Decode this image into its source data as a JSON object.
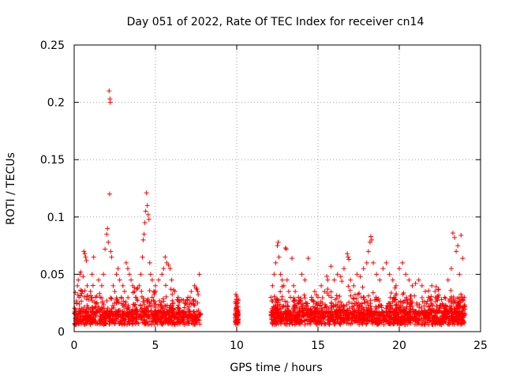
{
  "chart_data": {
    "type": "scatter",
    "title": "Day 051 of 2022, Rate Of TEC Index for receiver cn14",
    "xlabel": "GPS time / hours",
    "ylabel": "ROTI / TECUs",
    "xlim": [
      0,
      25
    ],
    "ylim": [
      0,
      0.25
    ],
    "xticks": [
      0,
      5,
      10,
      15,
      20,
      25
    ],
    "xtick_labels": [
      "0",
      "5",
      "10",
      "15",
      "20",
      "25"
    ],
    "yticks": [
      0,
      0.05,
      0.1,
      0.15,
      0.2,
      0.25
    ],
    "ytick_labels": [
      "0",
      "0.05",
      "0.1",
      "0.15",
      "0.2",
      "0.25"
    ],
    "grid": true,
    "marker": "+",
    "color": "#ff0000",
    "series": [
      {
        "name": "ROTI",
        "points": [
          [
            0.1,
            0.012
          ],
          [
            0.15,
            0.025
          ],
          [
            0.2,
            0.04
          ],
          [
            0.25,
            0.045
          ],
          [
            0.3,
            0.03
          ],
          [
            0.35,
            0.05
          ],
          [
            0.4,
            0.052
          ],
          [
            0.45,
            0.02
          ],
          [
            0.5,
            0.035
          ],
          [
            0.55,
            0.048
          ],
          [
            0.6,
            0.07
          ],
          [
            0.65,
            0.068
          ],
          [
            0.7,
            0.065
          ],
          [
            0.75,
            0.062
          ],
          [
            0.8,
            0.04
          ],
          [
            0.9,
            0.028
          ],
          [
            1.0,
            0.035
          ],
          [
            1.1,
            0.05
          ],
          [
            1.2,
            0.065
          ],
          [
            1.3,
            0.03
          ],
          [
            1.4,
            0.025
          ],
          [
            1.5,
            0.045
          ],
          [
            1.6,
            0.03
          ],
          [
            1.7,
            0.04
          ],
          [
            1.8,
            0.05
          ],
          [
            1.9,
            0.072
          ],
          [
            2.0,
            0.085
          ],
          [
            2.05,
            0.09
          ],
          [
            2.1,
            0.078
          ],
          [
            2.15,
            0.21
          ],
          [
            2.2,
            0.203
          ],
          [
            2.22,
            0.2
          ],
          [
            2.18,
            0.12
          ],
          [
            2.25,
            0.07
          ],
          [
            2.3,
            0.065
          ],
          [
            2.4,
            0.04
          ],
          [
            2.5,
            0.035
          ],
          [
            2.6,
            0.05
          ],
          [
            2.7,
            0.055
          ],
          [
            2.8,
            0.045
          ],
          [
            2.9,
            0.03
          ],
          [
            3.0,
            0.04
          ],
          [
            3.1,
            0.035
          ],
          [
            3.2,
            0.06
          ],
          [
            3.3,
            0.055
          ],
          [
            3.4,
            0.05
          ],
          [
            3.5,
            0.045
          ],
          [
            3.6,
            0.04
          ],
          [
            3.7,
            0.035
          ],
          [
            3.8,
            0.03
          ],
          [
            3.9,
            0.038
          ],
          [
            4.0,
            0.04
          ],
          [
            4.1,
            0.05
          ],
          [
            4.2,
            0.065
          ],
          [
            4.25,
            0.08
          ],
          [
            4.3,
            0.085
          ],
          [
            4.35,
            0.095
          ],
          [
            4.4,
            0.105
          ],
          [
            4.45,
            0.121
          ],
          [
            4.5,
            0.11
          ],
          [
            4.55,
            0.102
          ],
          [
            4.6,
            0.098
          ],
          [
            4.65,
            0.06
          ],
          [
            4.7,
            0.05
          ],
          [
            4.8,
            0.045
          ],
          [
            4.9,
            0.035
          ],
          [
            5.0,
            0.04
          ],
          [
            5.2,
            0.045
          ],
          [
            5.4,
            0.05
          ],
          [
            5.5,
            0.055
          ],
          [
            5.6,
            0.065
          ],
          [
            5.7,
            0.06
          ],
          [
            5.8,
            0.058
          ],
          [
            5.9,
            0.055
          ],
          [
            6.0,
            0.045
          ],
          [
            6.2,
            0.035
          ],
          [
            6.4,
            0.03
          ],
          [
            6.6,
            0.028
          ],
          [
            6.8,
            0.025
          ],
          [
            7.0,
            0.03
          ],
          [
            7.2,
            0.035
          ],
          [
            7.4,
            0.04
          ],
          [
            7.5,
            0.038
          ],
          [
            7.6,
            0.035
          ],
          [
            7.7,
            0.05
          ],
          [
            7.75,
            0.015
          ],
          [
            9.9,
            0.026
          ],
          [
            9.95,
            0.02
          ],
          [
            10.0,
            0.018
          ],
          [
            10.05,
            0.025
          ],
          [
            10.1,
            0.015
          ],
          [
            12.1,
            0.03
          ],
          [
            12.2,
            0.04
          ],
          [
            12.3,
            0.05
          ],
          [
            12.4,
            0.06
          ],
          [
            12.5,
            0.075
          ],
          [
            12.55,
            0.078
          ],
          [
            12.6,
            0.065
          ],
          [
            12.7,
            0.05
          ],
          [
            12.8,
            0.045
          ],
          [
            12.9,
            0.04
          ],
          [
            13.0,
            0.073
          ],
          [
            13.05,
            0.072
          ],
          [
            13.1,
            0.045
          ],
          [
            13.2,
            0.035
          ],
          [
            13.3,
            0.03
          ],
          [
            13.4,
            0.064
          ],
          [
            13.5,
            0.04
          ],
          [
            13.6,
            0.035
          ],
          [
            13.8,
            0.03
          ],
          [
            14.0,
            0.05
          ],
          [
            14.2,
            0.045
          ],
          [
            14.4,
            0.064
          ],
          [
            14.6,
            0.03
          ],
          [
            14.8,
            0.035
          ],
          [
            15.0,
            0.03
          ],
          [
            15.2,
            0.04
          ],
          [
            15.4,
            0.035
          ],
          [
            15.6,
            0.045
          ],
          [
            15.8,
            0.057
          ],
          [
            16.0,
            0.045
          ],
          [
            16.2,
            0.05
          ],
          [
            16.4,
            0.048
          ],
          [
            16.6,
            0.055
          ],
          [
            16.8,
            0.068
          ],
          [
            16.85,
            0.065
          ],
          [
            16.9,
            0.063
          ],
          [
            17.0,
            0.045
          ],
          [
            17.2,
            0.04
          ],
          [
            17.4,
            0.05
          ],
          [
            17.6,
            0.048
          ],
          [
            17.8,
            0.055
          ],
          [
            18.0,
            0.06
          ],
          [
            18.1,
            0.07
          ],
          [
            18.2,
            0.078
          ],
          [
            18.25,
            0.083
          ],
          [
            18.3,
            0.08
          ],
          [
            18.4,
            0.06
          ],
          [
            18.6,
            0.05
          ],
          [
            18.8,
            0.045
          ],
          [
            19.0,
            0.055
          ],
          [
            19.2,
            0.06
          ],
          [
            19.4,
            0.05
          ],
          [
            19.6,
            0.045
          ],
          [
            19.8,
            0.04
          ],
          [
            20.0,
            0.055
          ],
          [
            20.2,
            0.06
          ],
          [
            20.4,
            0.05
          ],
          [
            20.6,
            0.045
          ],
          [
            20.8,
            0.04
          ],
          [
            21.0,
            0.042
          ],
          [
            21.2,
            0.045
          ],
          [
            21.4,
            0.04
          ],
          [
            21.6,
            0.035
          ],
          [
            21.8,
            0.03
          ],
          [
            22.0,
            0.04
          ],
          [
            22.2,
            0.035
          ],
          [
            22.4,
            0.03
          ],
          [
            22.6,
            0.028
          ],
          [
            22.8,
            0.03
          ],
          [
            23.0,
            0.045
          ],
          [
            23.2,
            0.055
          ],
          [
            23.3,
            0.086
          ],
          [
            23.4,
            0.082
          ],
          [
            23.5,
            0.07
          ],
          [
            23.6,
            0.075
          ],
          [
            23.7,
            0.05
          ],
          [
            23.8,
            0.084
          ],
          [
            23.9,
            0.064
          ],
          [
            24.0,
            0.03
          ],
          [
            24.05,
            0.015
          ]
        ]
      }
    ]
  }
}
